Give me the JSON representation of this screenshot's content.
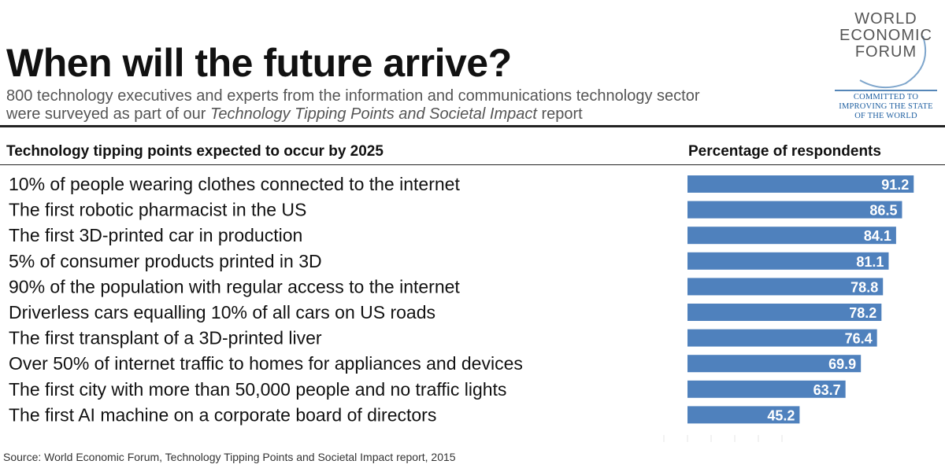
{
  "title": "When will the future arrive?",
  "subtitle": {
    "line1": "800 technology executives and experts from the information and communications technology sector",
    "line2_prefix": "were surveyed as part of our ",
    "line2_report": "Technology Tipping Points and Societal Impact",
    "line2_suffix": " report"
  },
  "logo": {
    "lines": [
      "WORLD",
      "ECONOMIC",
      "FORUM"
    ],
    "tagline": [
      "COMMITTED TO",
      "IMPROVING THE STATE",
      "OF THE WORLD"
    ]
  },
  "headers": {
    "left": "Technology tipping points expected to occur by 2025",
    "right": "Percentage of respondents"
  },
  "source": "Source: World Economic Forum, Technology Tipping Points and Societal Impact report, 2015",
  "colors": {
    "bar": "#4f81bd",
    "bar_text": "#ffffff",
    "logo_blue": "#1d5ea0"
  },
  "chart_data": {
    "type": "bar",
    "orientation": "horizontal",
    "title": "Technology tipping points expected to occur by 2025",
    "xlabel": "Percentage of respondents",
    "xlim": [
      0,
      100
    ],
    "categories": [
      "10% of people wearing clothes connected to the internet",
      "The first robotic pharmacist in the US",
      "The first 3D-printed car in production",
      "5% of consumer products printed in 3D",
      "90% of the population with regular access to the internet",
      "Driverless cars equalling 10% of all cars on US roads",
      "The first transplant of a 3D-printed liver",
      "Over 50% of internet traffic to homes for appliances and devices",
      "The first city with more than 50,000 people and no traffic lights",
      "The first AI machine on a corporate board of directors"
    ],
    "values": [
      91.2,
      86.5,
      84.1,
      81.1,
      78.8,
      78.2,
      76.4,
      69.9,
      63.7,
      45.2
    ]
  }
}
